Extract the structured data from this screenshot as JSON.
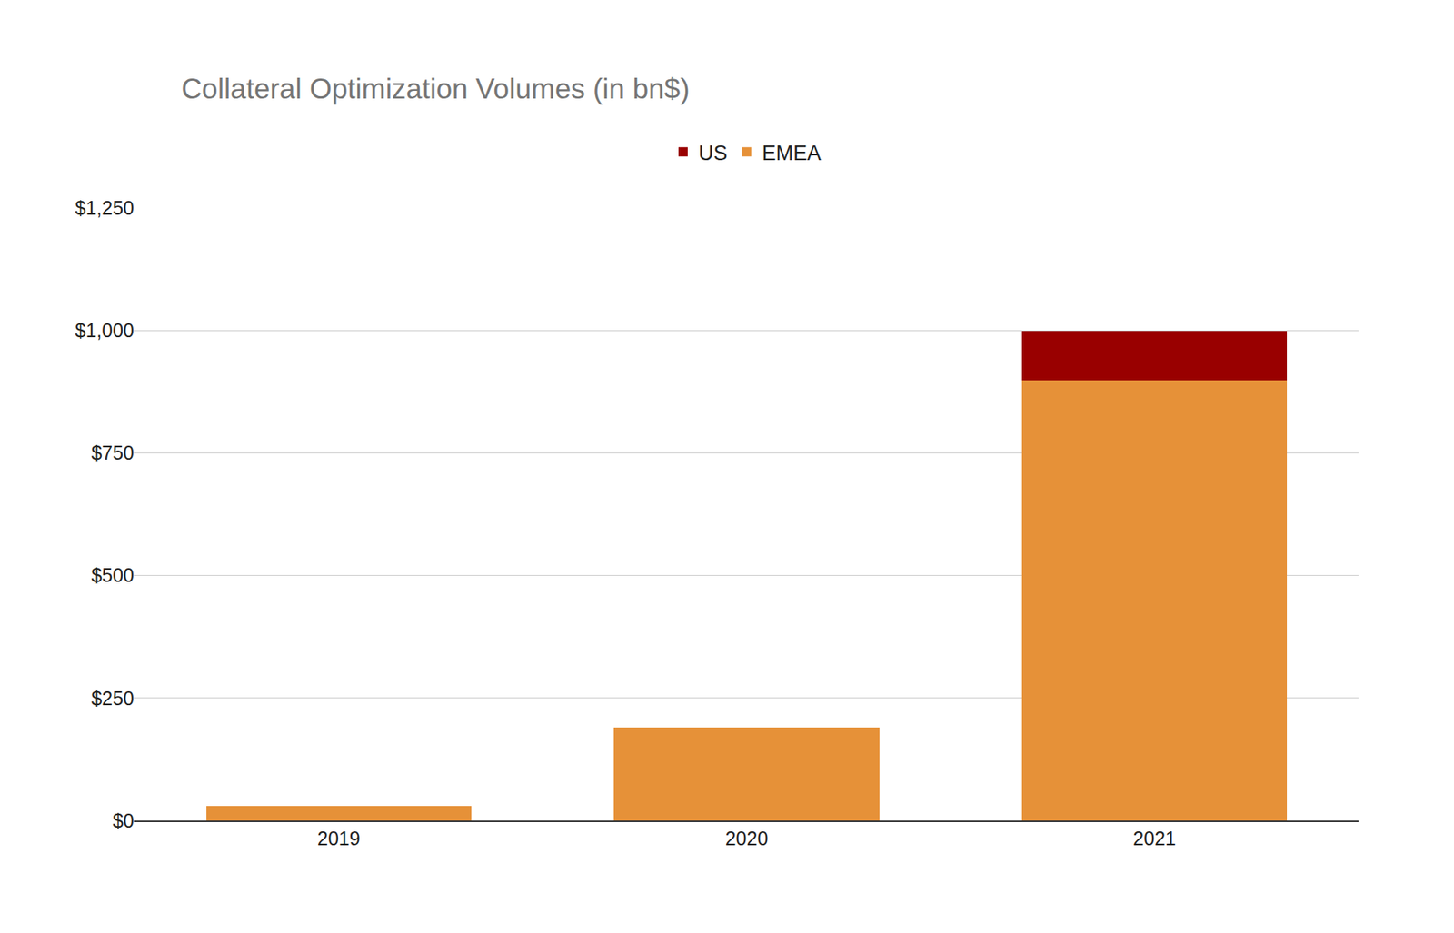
{
  "chart_data": {
    "type": "bar",
    "title": "Collateral Optimization Volumes (in bn$)",
    "categories": [
      "2019",
      "2020",
      "2021"
    ],
    "stacked": true,
    "grid": true,
    "legend": "top",
    "series": [
      {
        "name": "US",
        "color": "#990000",
        "values": [
          0,
          0,
          100
        ]
      },
      {
        "name": "EMEA",
        "color": "#e69138",
        "values": [
          30,
          190,
          898
        ]
      }
    ],
    "ylim": [
      0,
      1250
    ],
    "yticks": [
      {
        "value": 0,
        "label": "$0"
      },
      {
        "value": 250,
        "label": "$250"
      },
      {
        "value": 500,
        "label": "$500"
      },
      {
        "value": 750,
        "label": "$750"
      },
      {
        "value": 1000,
        "label": "$1,000"
      },
      {
        "value": 1250,
        "label": "$1,250"
      }
    ]
  }
}
